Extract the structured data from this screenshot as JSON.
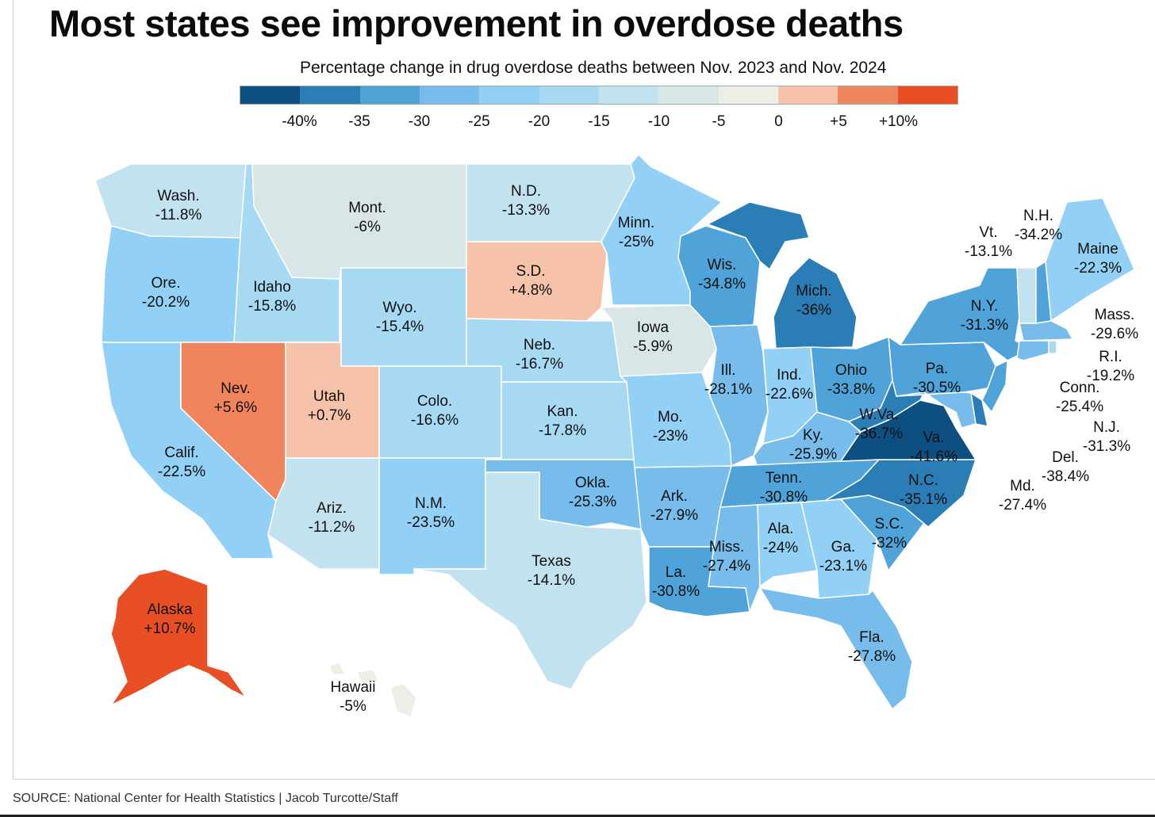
{
  "title": "Most states see improvement in overdose deaths",
  "subtitle": "Percentage change in drug overdose deaths between Nov. 2023 and Nov. 2024",
  "legend": {
    "colors": [
      "#0d4f80",
      "#2a7db5",
      "#4fa3d8",
      "#78bceb",
      "#93d0f5",
      "#a8d9f3",
      "#c3e2ef",
      "#d9e6e8",
      "#efeee6",
      "#f6c3aa",
      "#f0845c",
      "#e94f25"
    ],
    "ticks": [
      "-40%",
      "-35",
      "-30",
      "-25",
      "-20",
      "-15",
      "-10",
      "-5",
      "0",
      "+5",
      "+10%"
    ],
    "tick_values": [
      -40,
      -35,
      -30,
      -25,
      -20,
      -15,
      -10,
      -5,
      0,
      5,
      10
    ],
    "range": [
      -45,
      15
    ]
  },
  "states": [
    {
      "id": "wa",
      "name": "Wash.",
      "value": "-11.8%",
      "v": -11.8
    },
    {
      "id": "or",
      "name": "Ore.",
      "value": "-20.2%",
      "v": -20.2
    },
    {
      "id": "ca",
      "name": "Calif.",
      "value": "-22.5%",
      "v": -22.5
    },
    {
      "id": "nv",
      "name": "Nev.",
      "value": "+5.6%",
      "v": 5.6
    },
    {
      "id": "id",
      "name": "Idaho",
      "value": "-15.8%",
      "v": -15.8
    },
    {
      "id": "mt",
      "name": "Mont.",
      "value": "-6%",
      "v": -6
    },
    {
      "id": "wy",
      "name": "Wyo.",
      "value": "-15.4%",
      "v": -15.4
    },
    {
      "id": "ut",
      "name": "Utah",
      "value": "+0.7%",
      "v": 0.7
    },
    {
      "id": "az",
      "name": "Ariz.",
      "value": "-11.2%",
      "v": -11.2
    },
    {
      "id": "co",
      "name": "Colo.",
      "value": "-16.6%",
      "v": -16.6
    },
    {
      "id": "nm",
      "name": "N.M.",
      "value": "-23.5%",
      "v": -23.5
    },
    {
      "id": "nd",
      "name": "N.D.",
      "value": "-13.3%",
      "v": -13.3
    },
    {
      "id": "sd",
      "name": "S.D.",
      "value": "+4.8%",
      "v": 4.8
    },
    {
      "id": "ne",
      "name": "Neb.",
      "value": "-16.7%",
      "v": -16.7
    },
    {
      "id": "ks",
      "name": "Kan.",
      "value": "-17.8%",
      "v": -17.8
    },
    {
      "id": "ok",
      "name": "Okla.",
      "value": "-25.3%",
      "v": -25.3
    },
    {
      "id": "tx",
      "name": "Texas",
      "value": "-14.1%",
      "v": -14.1
    },
    {
      "id": "mn",
      "name": "Minn.",
      "value": "-25%",
      "v": -25
    },
    {
      "id": "ia",
      "name": "Iowa",
      "value": "-5.9%",
      "v": -5.9
    },
    {
      "id": "mo",
      "name": "Mo.",
      "value": "-23%",
      "v": -23
    },
    {
      "id": "ar",
      "name": "Ark.",
      "value": "-27.9%",
      "v": -27.9
    },
    {
      "id": "la",
      "name": "La.",
      "value": "-30.8%",
      "v": -30.8
    },
    {
      "id": "wi",
      "name": "Wis.",
      "value": "-34.8%",
      "v": -34.8
    },
    {
      "id": "il",
      "name": "Ill.",
      "value": "-28.1%",
      "v": -28.1
    },
    {
      "id": "mi",
      "name": "Mich.",
      "value": "-36%",
      "v": -36
    },
    {
      "id": "in",
      "name": "Ind.",
      "value": "-22.6%",
      "v": -22.6
    },
    {
      "id": "oh",
      "name": "Ohio",
      "value": "-33.8%",
      "v": -33.8
    },
    {
      "id": "ky",
      "name": "Ky.",
      "value": "-25.9%",
      "v": -25.9
    },
    {
      "id": "tn",
      "name": "Tenn.",
      "value": "-30.8%",
      "v": -30.8
    },
    {
      "id": "ms",
      "name": "Miss.",
      "value": "-27.4%",
      "v": -27.4
    },
    {
      "id": "al",
      "name": "Ala.",
      "value": "-24%",
      "v": -24
    },
    {
      "id": "ga",
      "name": "Ga.",
      "value": "-23.1%",
      "v": -23.1
    },
    {
      "id": "fl",
      "name": "Fla.",
      "value": "-27.8%",
      "v": -27.8
    },
    {
      "id": "sc",
      "name": "S.C.",
      "value": "-32%",
      "v": -32
    },
    {
      "id": "nc",
      "name": "N.C.",
      "value": "-35.1%",
      "v": -35.1
    },
    {
      "id": "va",
      "name": "Va.",
      "value": "-41.6%",
      "v": -41.6
    },
    {
      "id": "wv",
      "name": "W.Va.",
      "value": "-36.7%",
      "v": -36.7
    },
    {
      "id": "pa",
      "name": "Pa.",
      "value": "-30.5%",
      "v": -30.5
    },
    {
      "id": "ny",
      "name": "N.Y.",
      "value": "-31.3%",
      "v": -31.3
    },
    {
      "id": "vt",
      "name": "Vt.",
      "value": "-13.1%",
      "v": -13.1
    },
    {
      "id": "nh",
      "name": "N.H.",
      "value": "-34.2%",
      "v": -34.2
    },
    {
      "id": "me",
      "name": "Maine",
      "value": "-22.3%",
      "v": -22.3
    },
    {
      "id": "ma",
      "name": "Mass.",
      "value": "-29.6%",
      "v": -29.6
    },
    {
      "id": "ri",
      "name": "R.I.",
      "value": "-19.2%",
      "v": -19.2
    },
    {
      "id": "ct",
      "name": "Conn.",
      "value": "-25.4%",
      "v": -25.4
    },
    {
      "id": "nj",
      "name": "N.J.",
      "value": "-31.3%",
      "v": -31.3
    },
    {
      "id": "de",
      "name": "Del.",
      "value": "-38.4%",
      "v": -38.4
    },
    {
      "id": "md",
      "name": "Md.",
      "value": "-27.4%",
      "v": -27.4
    },
    {
      "id": "ak",
      "name": "Alaska",
      "value": "+10.7%",
      "v": 10.7
    },
    {
      "id": "hi",
      "name": "Hawaii",
      "value": "-5%",
      "v": -5
    }
  ],
  "source": "SOURCE: National Center for Health Statistics | Jacob Turcotte/Staff"
}
